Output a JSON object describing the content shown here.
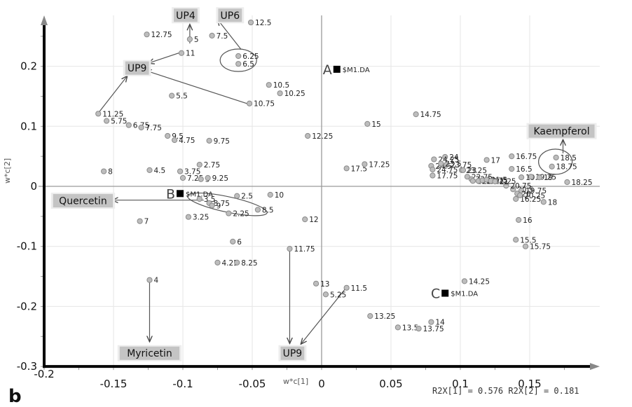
{
  "chart_data": {
    "type": "scatter",
    "title": "",
    "xlabel": "w*c[1]",
    "ylabel": "w*c[2]",
    "xlim": [
      -0.2,
      0.2
    ],
    "ylim": [
      -0.3,
      0.28
    ],
    "x_ticks": [
      "-0.2",
      "-0.15",
      "-0.1",
      "-0.05",
      "0",
      "0.05",
      "0.1",
      "0.15"
    ],
    "y_ticks": [
      "0.2",
      "0.1",
      "0",
      "-0.1",
      "-0.2",
      "-0.3"
    ],
    "grid": true,
    "panel_label": "b",
    "footer": "R2X[1] = 0.576 R2X[2] = 0.181",
    "points": [
      {
        "label": "12.5",
        "x": -0.051,
        "y": 0.273
      },
      {
        "label": "12.75",
        "x": -0.126,
        "y": 0.253
      },
      {
        "label": "5",
        "x": -0.095,
        "y": 0.245
      },
      {
        "label": "7.5",
        "x": -0.079,
        "y": 0.251
      },
      {
        "label": "11",
        "x": -0.101,
        "y": 0.222
      },
      {
        "label": "6.25",
        "x": -0.06,
        "y": 0.217
      },
      {
        "label": "6.5",
        "x": -0.06,
        "y": 0.204
      },
      {
        "label": "10.5",
        "x": -0.038,
        "y": 0.169
      },
      {
        "label": "10.25",
        "x": -0.03,
        "y": 0.155
      },
      {
        "label": "5.5",
        "x": -0.108,
        "y": 0.151
      },
      {
        "label": "10.75",
        "x": -0.052,
        "y": 0.138
      },
      {
        "label": "11.25",
        "x": -0.161,
        "y": 0.121
      },
      {
        "label": "5.75",
        "x": -0.155,
        "y": 0.109
      },
      {
        "label": "6.75",
        "x": -0.139,
        "y": 0.102
      },
      {
        "label": "7.75",
        "x": -0.13,
        "y": 0.098
      },
      {
        "label": "9.5",
        "x": -0.111,
        "y": 0.084
      },
      {
        "label": "4.75",
        "x": -0.106,
        "y": 0.077
      },
      {
        "label": "9.75",
        "x": -0.081,
        "y": 0.076
      },
      {
        "label": "12.25",
        "x": -0.01,
        "y": 0.084
      },
      {
        "label": "15",
        "x": 0.033,
        "y": 0.104
      },
      {
        "label": "14.75",
        "x": 0.068,
        "y": 0.12
      },
      {
        "label": "2.75",
        "x": -0.088,
        "y": 0.036
      },
      {
        "label": "8",
        "x": -0.157,
        "y": 0.025
      },
      {
        "label": "4.5",
        "x": -0.124,
        "y": 0.027
      },
      {
        "label": "3.75",
        "x": -0.102,
        "y": 0.025
      },
      {
        "label": "7.25",
        "x": -0.1,
        "y": 0.014
      },
      {
        "label": "3",
        "x": -0.087,
        "y": 0.012
      },
      {
        "label": "9.25",
        "x": -0.082,
        "y": 0.014
      },
      {
        "label": "17.5",
        "x": 0.018,
        "y": 0.03
      },
      {
        "label": "17.25",
        "x": 0.031,
        "y": 0.037
      },
      {
        "label": "2.5",
        "x": -0.061,
        "y": -0.016
      },
      {
        "label": "10",
        "x": -0.037,
        "y": -0.014
      },
      {
        "label": "3.5",
        "x": -0.088,
        "y": -0.021
      },
      {
        "label": "8.75",
        "x": -0.081,
        "y": -0.028
      },
      {
        "label": "9",
        "x": -0.079,
        "y": -0.032
      },
      {
        "label": "8.5",
        "x": -0.046,
        "y": -0.039
      },
      {
        "label": "2.25",
        "x": -0.067,
        "y": -0.045
      },
      {
        "label": "3.25",
        "x": -0.096,
        "y": -0.051
      },
      {
        "label": "7",
        "x": -0.131,
        "y": -0.058
      },
      {
        "label": "12",
        "x": -0.012,
        "y": -0.055
      },
      {
        "label": "6",
        "x": -0.064,
        "y": -0.092
      },
      {
        "label": "11.75",
        "x": -0.023,
        "y": -0.104
      },
      {
        "label": "4.25",
        "x": -0.075,
        "y": -0.127
      },
      {
        "label": "8.25",
        "x": -0.061,
        "y": -0.127
      },
      {
        "label": "4",
        "x": -0.124,
        "y": -0.156
      },
      {
        "label": "13",
        "x": -0.004,
        "y": -0.162
      },
      {
        "label": "11.5",
        "x": 0.018,
        "y": -0.169
      },
      {
        "label": "5.25",
        "x": 0.003,
        "y": -0.18
      },
      {
        "label": "14.25",
        "x": 0.103,
        "y": -0.158
      },
      {
        "label": "13.25",
        "x": 0.035,
        "y": -0.216
      },
      {
        "label": "14",
        "x": 0.079,
        "y": -0.226
      },
      {
        "label": "13.5",
        "x": 0.055,
        "y": -0.235
      },
      {
        "label": "13.75",
        "x": 0.07,
        "y": -0.237
      },
      {
        "label": "16.75",
        "x": 0.137,
        "y": 0.05
      },
      {
        "label": "17",
        "x": 0.119,
        "y": 0.044
      },
      {
        "label": "18.5",
        "x": 0.169,
        "y": 0.048
      },
      {
        "label": "18.75",
        "x": 0.166,
        "y": 0.033
      },
      {
        "label": "16.5",
        "x": 0.137,
        "y": 0.029
      },
      {
        "label": "18.25",
        "x": 0.177,
        "y": 0.007
      },
      {
        "label": "18",
        "x": 0.16,
        "y": -0.026
      },
      {
        "label": "16",
        "x": 0.142,
        "y": -0.056
      },
      {
        "label": "15.5",
        "x": 0.14,
        "y": -0.089
      },
      {
        "label": "15.75",
        "x": 0.147,
        "y": -0.1
      },
      {
        "label": "16.25",
        "x": 0.14,
        "y": -0.021
      },
      {
        "label": "20.5",
        "x": 0.138,
        "y": -0.005
      },
      {
        "label": "19.75",
        "x": 0.144,
        "y": -0.007
      },
      {
        "label": "20",
        "x": 0.141,
        "y": -0.012
      },
      {
        "label": "20.25",
        "x": 0.143,
        "y": -0.015
      },
      {
        "label": "20.75",
        "x": 0.133,
        "y": 0.001
      },
      {
        "label": "19.5",
        "x": 0.144,
        "y": 0.015
      },
      {
        "label": "19.25",
        "x": 0.151,
        "y": 0.016
      },
      {
        "label": "19",
        "x": 0.157,
        "y": 0.015
      },
      {
        "label": "24",
        "x": 0.089,
        "y": 0.049
      },
      {
        "label": "24.25",
        "x": 0.081,
        "y": 0.045
      },
      {
        "label": "24.5",
        "x": 0.079,
        "y": 0.034
      },
      {
        "label": "24.75",
        "x": 0.08,
        "y": 0.028
      },
      {
        "label": "23.75",
        "x": 0.09,
        "y": 0.036
      },
      {
        "label": "23.5",
        "x": 0.086,
        "y": 0.038
      },
      {
        "label": "23.25",
        "x": 0.101,
        "y": 0.027
      },
      {
        "label": "23",
        "x": 0.102,
        "y": 0.027
      },
      {
        "label": "17.75",
        "x": 0.08,
        "y": 0.018
      },
      {
        "label": "22.75",
        "x": 0.105,
        "y": 0.016
      },
      {
        "label": "22.5",
        "x": 0.108,
        "y": 0.012
      },
      {
        "label": "22.25",
        "x": 0.109,
        "y": 0.009
      },
      {
        "label": "22",
        "x": 0.113,
        "y": 0.009
      },
      {
        "label": "21.75",
        "x": 0.116,
        "y": 0.01
      },
      {
        "label": "21.5",
        "x": 0.119,
        "y": 0.011
      },
      {
        "label": "21.25",
        "x": 0.122,
        "y": 0.009
      },
      {
        "label": "21",
        "x": 0.125,
        "y": 0.008
      }
    ],
    "class_markers": [
      {
        "letter": "A",
        "label": "$M1.DA",
        "x": 0.011,
        "y": 0.195
      },
      {
        "letter": "B",
        "label": "$M1.DA",
        "x": -0.102,
        "y": -0.012
      },
      {
        "letter": "C",
        "label": "$M1.DA",
        "x": 0.089,
        "y": -0.178
      }
    ],
    "annotations": [
      {
        "text": "UP4",
        "x": -0.098,
        "y": 0.285
      },
      {
        "text": "UP6",
        "x": -0.066,
        "y": 0.285
      },
      {
        "text": "UP9",
        "x": -0.133,
        "y": 0.197
      },
      {
        "text": "Quercetin",
        "x": -0.172,
        "y": -0.024
      },
      {
        "text": "Myricetin",
        "x": -0.124,
        "y": -0.278
      },
      {
        "text": "UP9",
        "x": -0.021,
        "y": -0.278
      },
      {
        "text": "Kaempferol",
        "x": 0.173,
        "y": 0.092
      }
    ]
  }
}
